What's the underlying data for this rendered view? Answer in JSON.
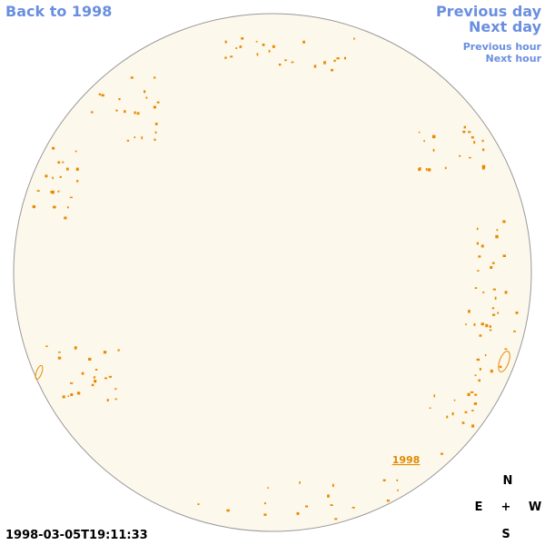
{
  "nav": {
    "back": "Back to 1998",
    "previous_day": "Previous day",
    "next_day": "Next day",
    "previous_hour": "Previous hour",
    "next_hour": "Next hour"
  },
  "timestamp": "1998-03-05T19:11:33",
  "compass": {
    "north": "N",
    "south": "S",
    "east": "E",
    "west": "W",
    "center": "+"
  },
  "disk_label": "1998"
}
